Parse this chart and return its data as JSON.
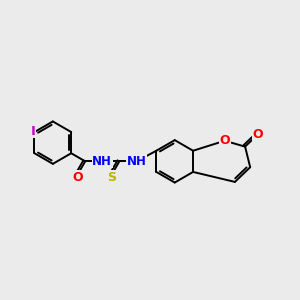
{
  "background_color": "#ebebeb",
  "atom_colors": {
    "I": "#cc00cc",
    "O": "#ff0000",
    "N": "#0000ff",
    "S": "#b8b800",
    "C": "#000000"
  },
  "bond_color": "#000000",
  "bond_width": 1.4,
  "figsize": [
    3.0,
    3.0
  ],
  "dpi": 100,
  "xlim": [
    -2.5,
    7.5
  ],
  "ylim": [
    -3.0,
    3.5
  ]
}
